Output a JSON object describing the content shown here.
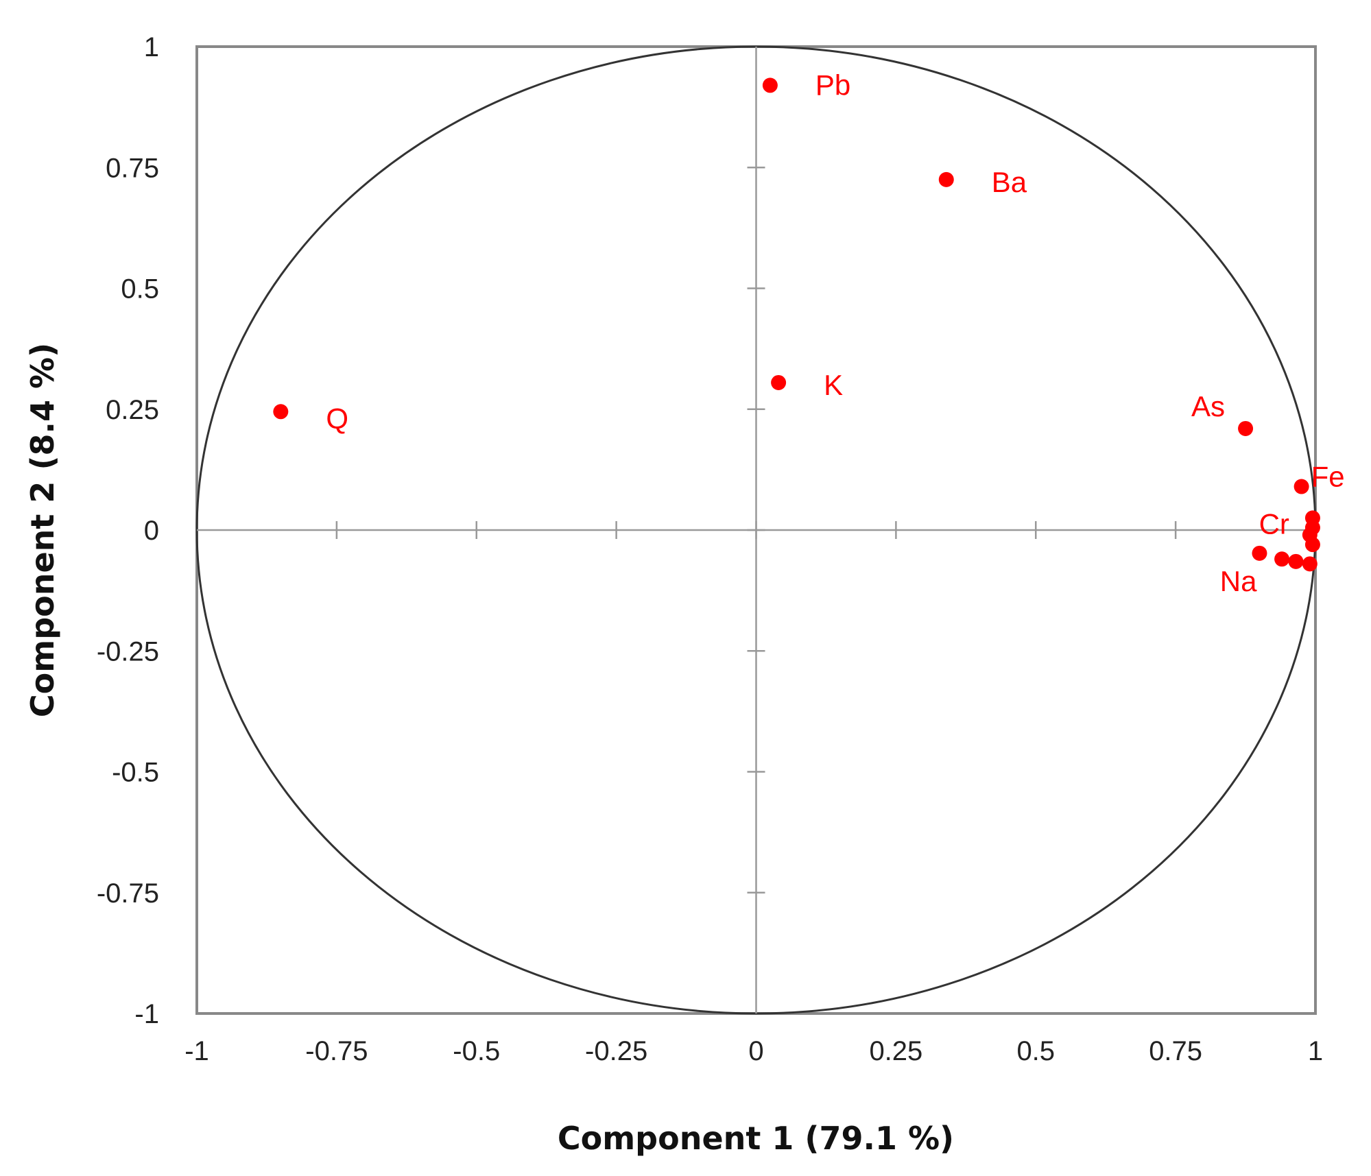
{
  "chart_data": {
    "type": "scatter",
    "title": "",
    "xlabel": "Component 1 (79.1 %)",
    "ylabel": "Component 2 (8.4 %)",
    "xlim": [
      -1,
      1
    ],
    "ylim": [
      -1,
      1
    ],
    "xticks": [
      "-1",
      "-0.75",
      "-0.5",
      "-0.25",
      "0",
      "0.25",
      "0.5",
      "0.75",
      "1"
    ],
    "yticks": [
      "1",
      "0.75",
      "0.5",
      "0.25",
      "0",
      "-0.25",
      "-0.5",
      "-0.75",
      "-1"
    ],
    "grid": false,
    "correlation_circle": true,
    "marker_color": "#ff0000",
    "points": [
      {
        "label": "Pb",
        "x": 0.025,
        "y": 0.92
      },
      {
        "label": "Ba",
        "x": 0.34,
        "y": 0.725
      },
      {
        "label": "K",
        "x": 0.04,
        "y": 0.305
      },
      {
        "label": "Q",
        "x": -0.85,
        "y": 0.245
      },
      {
        "label": "As",
        "x": 0.875,
        "y": 0.21
      },
      {
        "label": "Fe",
        "x": 0.975,
        "y": 0.09
      },
      {
        "label": "Cr",
        "x": 0.995,
        "y": 0.025
      },
      {
        "label": "Na",
        "x": 0.9,
        "y": -0.048
      },
      {
        "label": "",
        "x": 0.995,
        "y": 0.005
      },
      {
        "label": "",
        "x": 0.99,
        "y": -0.01
      },
      {
        "label": "",
        "x": 0.995,
        "y": -0.03
      },
      {
        "label": "",
        "x": 0.94,
        "y": -0.06
      },
      {
        "label": "",
        "x": 0.965,
        "y": -0.065
      },
      {
        "label": "",
        "x": 0.99,
        "y": -0.07
      }
    ]
  }
}
